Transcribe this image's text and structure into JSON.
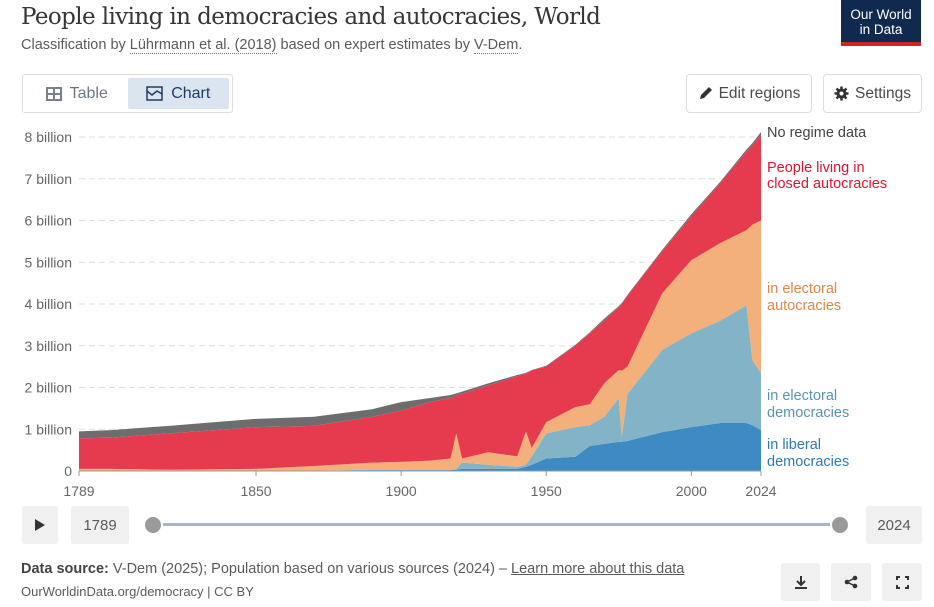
{
  "header": {
    "title": "People living in democracies and autocracies, World",
    "subtitle_prefix": "Classification by ",
    "subtitle_link1": "Lührmann et al. (2018)",
    "subtitle_mid": " based on expert estimates by ",
    "subtitle_link2": "V-Dem",
    "subtitle_suffix": ".",
    "logo_line1": "Our World",
    "logo_line2": "in Data"
  },
  "toolbar": {
    "tabs": [
      {
        "label": "Table",
        "icon": "table-icon"
      },
      {
        "label": "Chart",
        "icon": "chart-icon",
        "active": true
      }
    ],
    "edit_regions": "Edit regions",
    "settings": "Settings"
  },
  "chart_data": {
    "type": "area",
    "stacked": true,
    "x_ticks": [
      "1789",
      "1850",
      "1900",
      "1950",
      "2000",
      "2024"
    ],
    "y_ticks": [
      "0",
      "1 billion",
      "2 billion",
      "3 billion",
      "4 billion",
      "5 billion",
      "6 billion",
      "7 billion",
      "8 billion"
    ],
    "ylim": [
      0,
      8000000000
    ],
    "xlim": [
      1789,
      2024
    ],
    "grid": "horizontal dashed",
    "legend": "right, inline labels",
    "x": [
      1789,
      1800,
      1820,
      1850,
      1870,
      1890,
      1900,
      1910,
      1917,
      1919,
      1921,
      1930,
      1940,
      1943,
      1945,
      1950,
      1960,
      1965,
      1970,
      1975,
      1976,
      1978,
      1990,
      2000,
      2010,
      2019,
      2021,
      2024
    ],
    "series": [
      {
        "name": "in liberal democracies",
        "label_lines": [
          "in liberal",
          "democracies"
        ],
        "color": "#3d8bc2",
        "values_billion": [
          0,
          0,
          0,
          0,
          0.01,
          0.02,
          0.02,
          0.02,
          0.02,
          0.03,
          0.05,
          0.05,
          0.05,
          0.1,
          0.15,
          0.3,
          0.34,
          0.6,
          0.65,
          0.7,
          0.7,
          0.72,
          0.93,
          1.05,
          1.15,
          1.15,
          1.1,
          0.98
        ]
      },
      {
        "name": "in electoral democracies",
        "label_lines": [
          "in electoral",
          "democracies"
        ],
        "color": "#83b3c6",
        "values_billion": [
          0,
          0,
          0,
          0,
          0,
          0.01,
          0.01,
          0.01,
          0.01,
          0.02,
          0.15,
          0.1,
          0.05,
          0.05,
          0.2,
          0.6,
          0.71,
          0.5,
          0.65,
          1.05,
          0.1,
          1.13,
          1.97,
          2.25,
          2.45,
          2.82,
          1.55,
          1.37
        ]
      },
      {
        "name": "in electoral autocracies",
        "label_lines": [
          "in electoral",
          "autocracies"
        ],
        "color": "#f4b07a",
        "values_billion": [
          0.05,
          0.05,
          0.03,
          0.05,
          0.11,
          0.17,
          0.19,
          0.22,
          0.27,
          0.85,
          0.1,
          0.3,
          0.25,
          0.8,
          0.2,
          0.27,
          0.48,
          0.5,
          0.8,
          0.67,
          1.6,
          0.65,
          1.36,
          1.75,
          1.86,
          1.8,
          3.25,
          3.65
        ]
      },
      {
        "name": "People living in closed autocracies",
        "label_lines": [
          "People living in",
          "closed autocracies"
        ],
        "color": "#e63b4f",
        "values_billion": [
          0.73,
          0.75,
          0.87,
          1.0,
          0.96,
          1.1,
          1.23,
          1.4,
          1.45,
          0.9,
          1.55,
          1.6,
          1.92,
          1.38,
          1.87,
          1.33,
          1.47,
          1.7,
          1.5,
          1.51,
          1.6,
          1.7,
          1.01,
          1.05,
          1.44,
          1.88,
          1.9,
          2.05
        ]
      },
      {
        "name": "No regime data",
        "label_lines": [
          "No regime data"
        ],
        "color": "#6d6d6d",
        "values_billion": [
          0.17,
          0.18,
          0.18,
          0.2,
          0.22,
          0.18,
          0.2,
          0.1,
          0.07,
          0.06,
          0.05,
          0.05,
          0.03,
          0.02,
          0.0,
          0.02,
          0.02,
          0.02,
          0.05,
          0.02,
          0.02,
          0.02,
          0.03,
          0.05,
          0.03,
          0.05,
          0.05,
          0.07
        ]
      }
    ],
    "label_colors": [
      "#2f7ab3",
      "#5a94ab",
      "#e0874a",
      "#d8172f",
      "#444444"
    ]
  },
  "timeline": {
    "start": "1789",
    "end": "2024",
    "play_icon": "play-icon"
  },
  "footer": {
    "source_label": "Data source:",
    "source_text": " V-Dem (2025); Population based on various sources (2024) – ",
    "learn_more": "Learn more about this data",
    "url_license": "OurWorldinData.org/democracy | CC BY"
  }
}
